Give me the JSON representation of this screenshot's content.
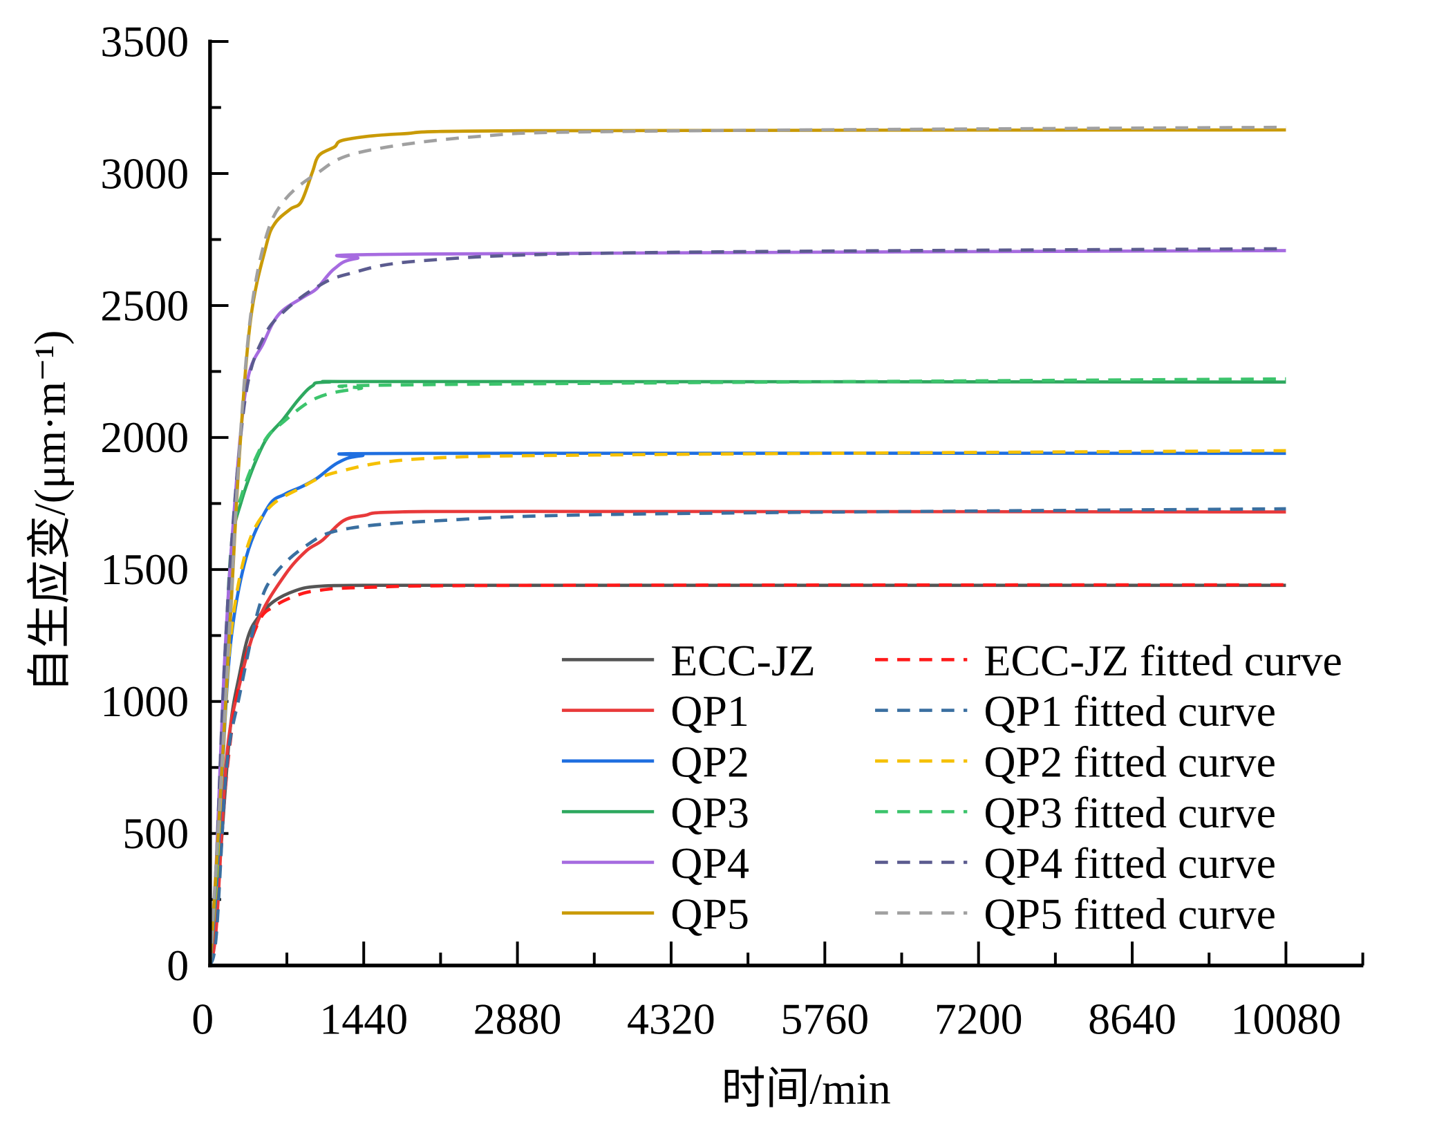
{
  "chart_data": {
    "type": "line",
    "title": "",
    "xlabel": "时间/min",
    "ylabel": "自生应变/(μm·m⁻¹)",
    "xlim": [
      0,
      10800
    ],
    "ylim": [
      0,
      3500
    ],
    "x_ticks": [
      0,
      1440,
      2880,
      4320,
      5760,
      7200,
      8640,
      10080
    ],
    "x_tick_labels": [
      "0",
      "1440",
      "2880",
      "4320",
      "5760",
      "7200",
      "8640",
      "10080"
    ],
    "x_minor_step": 720,
    "y_ticks": [
      0,
      500,
      1000,
      1500,
      2000,
      2500,
      3000,
      3500
    ],
    "y_tick_labels": [
      "0",
      "500",
      "1000",
      "1500",
      "2000",
      "2500",
      "3000",
      "3500"
    ],
    "y_minor_step": 250,
    "grid": false,
    "legend_position": "bottom-right",
    "series": [
      {
        "name": "ECC-JZ",
        "style": "solid",
        "color": "#555555",
        "points": [
          [
            0,
            0
          ],
          [
            50,
            200
          ],
          [
            107,
            470
          ],
          [
            190,
            900
          ],
          [
            280,
            1110
          ],
          [
            360,
            1250
          ],
          [
            454,
            1320
          ],
          [
            600,
            1380
          ],
          [
            800,
            1420
          ],
          [
            1000,
            1436
          ],
          [
            1440,
            1440
          ],
          [
            3000,
            1440
          ],
          [
            10080,
            1440
          ]
        ]
      },
      {
        "name": "QP1",
        "style": "solid",
        "color": "#e8393a",
        "points": [
          [
            0,
            0
          ],
          [
            60,
            150
          ],
          [
            156,
            790
          ],
          [
            280,
            1070
          ],
          [
            454,
            1310
          ],
          [
            703,
            1480
          ],
          [
            900,
            1570
          ],
          [
            1050,
            1610
          ],
          [
            1250,
            1685
          ],
          [
            1450,
            1705
          ],
          [
            1700,
            1717
          ],
          [
            3000,
            1720
          ],
          [
            10080,
            1718
          ]
        ]
      },
      {
        "name": "QP2",
        "style": "solid",
        "color": "#1f6fe0",
        "points": [
          [
            0,
            0
          ],
          [
            60,
            300
          ],
          [
            110,
            700
          ],
          [
            193,
            1220
          ],
          [
            338,
            1545
          ],
          [
            545,
            1738
          ],
          [
            700,
            1785
          ],
          [
            855,
            1813
          ],
          [
            1000,
            1845
          ],
          [
            1200,
            1905
          ],
          [
            1420,
            1931
          ],
          [
            2000,
            1940
          ],
          [
            10080,
            1940
          ]
        ]
      },
      {
        "name": "QP3",
        "style": "solid",
        "color": "#2ea85f",
        "points": [
          [
            0,
            0
          ],
          [
            60,
            350
          ],
          [
            120,
            900
          ],
          [
            193,
            1545
          ],
          [
            295,
            1760
          ],
          [
            500,
            1974
          ],
          [
            690,
            2071
          ],
          [
            834,
            2146
          ],
          [
            958,
            2195
          ],
          [
            1100,
            2210
          ],
          [
            2000,
            2212
          ],
          [
            10080,
            2210
          ]
        ]
      },
      {
        "name": "QP4",
        "style": "solid",
        "color": "#a66be0",
        "points": [
          [
            0,
            0
          ],
          [
            60,
            400
          ],
          [
            130,
            1100
          ],
          [
            213,
            1652
          ],
          [
            338,
            2189
          ],
          [
            503,
            2360
          ],
          [
            648,
            2468
          ],
          [
            875,
            2532
          ],
          [
            1000,
            2564
          ],
          [
            1164,
            2639
          ],
          [
            1371,
            2678
          ],
          [
            2000,
            2695
          ],
          [
            10080,
            2708
          ]
        ]
      },
      {
        "name": "QP5",
        "style": "solid",
        "color": "#c99a06",
        "points": [
          [
            0,
            0
          ],
          [
            60,
            380
          ],
          [
            120,
            800
          ],
          [
            193,
            1330
          ],
          [
            275,
            1931
          ],
          [
            380,
            2446
          ],
          [
            525,
            2725
          ],
          [
            608,
            2811
          ],
          [
            752,
            2865
          ],
          [
            855,
            2893
          ],
          [
            958,
            3004
          ],
          [
            1020,
            3068
          ],
          [
            1164,
            3100
          ],
          [
            1267,
            3128
          ],
          [
            1786,
            3150
          ],
          [
            3000,
            3162
          ],
          [
            10080,
            3165
          ]
        ]
      },
      {
        "name": "ECC-JZ fitted curve",
        "style": "dashed",
        "color": "#ff1a1a",
        "points": [
          [
            0,
            0
          ],
          [
            60,
            150
          ],
          [
            150,
            700
          ],
          [
            280,
            1080
          ],
          [
            454,
            1300
          ],
          [
            600,
            1360
          ],
          [
            800,
            1400
          ],
          [
            1000,
            1420
          ],
          [
            1440,
            1432
          ],
          [
            3000,
            1440
          ],
          [
            10080,
            1442
          ]
        ]
      },
      {
        "name": "QP1 fitted curve",
        "style": "dashed",
        "color": "#3a6fa0",
        "points": [
          [
            0,
            0
          ],
          [
            60,
            120
          ],
          [
            156,
            750
          ],
          [
            280,
            1030
          ],
          [
            454,
            1350
          ],
          [
            603,
            1480
          ],
          [
            900,
            1590
          ],
          [
            1250,
            1652
          ],
          [
            2142,
            1685
          ],
          [
            4000,
            1710
          ],
          [
            10080,
            1730
          ]
        ]
      },
      {
        "name": "QP2 fitted curve",
        "style": "dashed",
        "color": "#f5c000",
        "points": [
          [
            0,
            0
          ],
          [
            60,
            320
          ],
          [
            110,
            720
          ],
          [
            193,
            1240
          ],
          [
            338,
            1570
          ],
          [
            545,
            1730
          ],
          [
            855,
            1810
          ],
          [
            1200,
            1870
          ],
          [
            2000,
            1920
          ],
          [
            4000,
            1935
          ],
          [
            10080,
            1950
          ]
        ]
      },
      {
        "name": "QP3 fitted curve",
        "style": "dashed",
        "color": "#3cc46c",
        "points": [
          [
            0,
            0
          ],
          [
            60,
            360
          ],
          [
            120,
            920
          ],
          [
            193,
            1560
          ],
          [
            295,
            1780
          ],
          [
            500,
            1980
          ],
          [
            690,
            2060
          ],
          [
            1000,
            2150
          ],
          [
            1400,
            2185
          ],
          [
            2000,
            2200
          ],
          [
            10080,
            2222
          ]
        ]
      },
      {
        "name": "QP4 fitted curve",
        "style": "dashed",
        "color": "#5b5b8f",
        "points": [
          [
            0,
            0
          ],
          [
            60,
            400
          ],
          [
            130,
            1100
          ],
          [
            213,
            1660
          ],
          [
            338,
            2170
          ],
          [
            503,
            2380
          ],
          [
            700,
            2480
          ],
          [
            1000,
            2570
          ],
          [
            1300,
            2620
          ],
          [
            2000,
            2670
          ],
          [
            4000,
            2700
          ],
          [
            10080,
            2715
          ]
        ]
      },
      {
        "name": "QP5 fitted curve",
        "style": "dashed",
        "color": "#a0a0a0",
        "points": [
          [
            0,
            0
          ],
          [
            60,
            400
          ],
          [
            120,
            820
          ],
          [
            193,
            1350
          ],
          [
            275,
            1950
          ],
          [
            380,
            2460
          ],
          [
            525,
            2760
          ],
          [
            700,
            2900
          ],
          [
            1000,
            3000
          ],
          [
            1400,
            3080
          ],
          [
            2500,
            3140
          ],
          [
            4000,
            3160
          ],
          [
            10080,
            3175
          ]
        ]
      }
    ]
  }
}
